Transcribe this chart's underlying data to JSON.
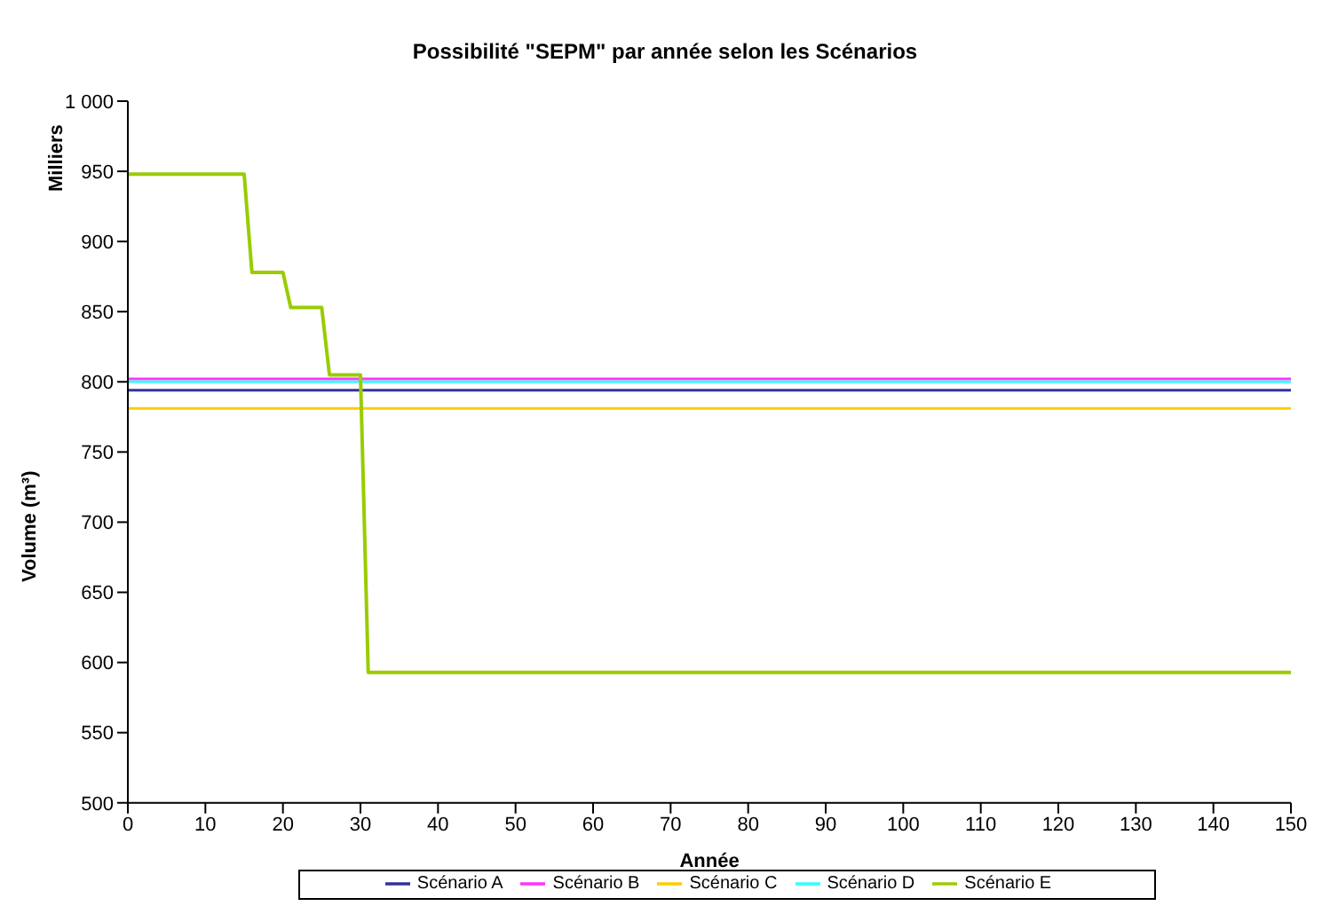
{
  "chart_data": {
    "type": "line",
    "title": "Possibilité \"SEPM\" par année selon les Scénarios",
    "xlabel": "Année",
    "ylabel": "Volume (m³)",
    "annotations": [
      "Milliers"
    ],
    "xlim": [
      0,
      150
    ],
    "xticks": [
      0,
      10,
      20,
      30,
      40,
      50,
      60,
      70,
      80,
      90,
      100,
      110,
      120,
      130,
      140,
      150
    ],
    "ylim": [
      500,
      1000
    ],
    "yticks": [
      500,
      550,
      600,
      650,
      700,
      750,
      800,
      850,
      900,
      950,
      {
        "value": 1000,
        "label": "1 000"
      }
    ],
    "grid": false,
    "legend": "bottom",
    "marker": "none",
    "line_style": "solid",
    "series": [
      {
        "name": "Scénario A",
        "color": "#333399",
        "x": [
          0,
          150
        ],
        "values": [
          794,
          794
        ]
      },
      {
        "name": "Scénario B",
        "color": "#ff33ff",
        "x": [
          0,
          150
        ],
        "values": [
          802,
          802
        ]
      },
      {
        "name": "Scénario C",
        "color": "#ffcc00",
        "x": [
          0,
          150
        ],
        "values": [
          781,
          781
        ]
      },
      {
        "name": "Scénario D",
        "color": "#33ffff",
        "x": [
          0,
          150
        ],
        "values": [
          800,
          800
        ]
      },
      {
        "name": "Scénario E",
        "color": "#99cc00",
        "x": [
          0,
          15,
          16,
          20,
          21,
          25,
          26,
          30,
          31,
          150
        ],
        "values": [
          948,
          948,
          878,
          878,
          853,
          853,
          805,
          805,
          593,
          593
        ]
      }
    ]
  }
}
